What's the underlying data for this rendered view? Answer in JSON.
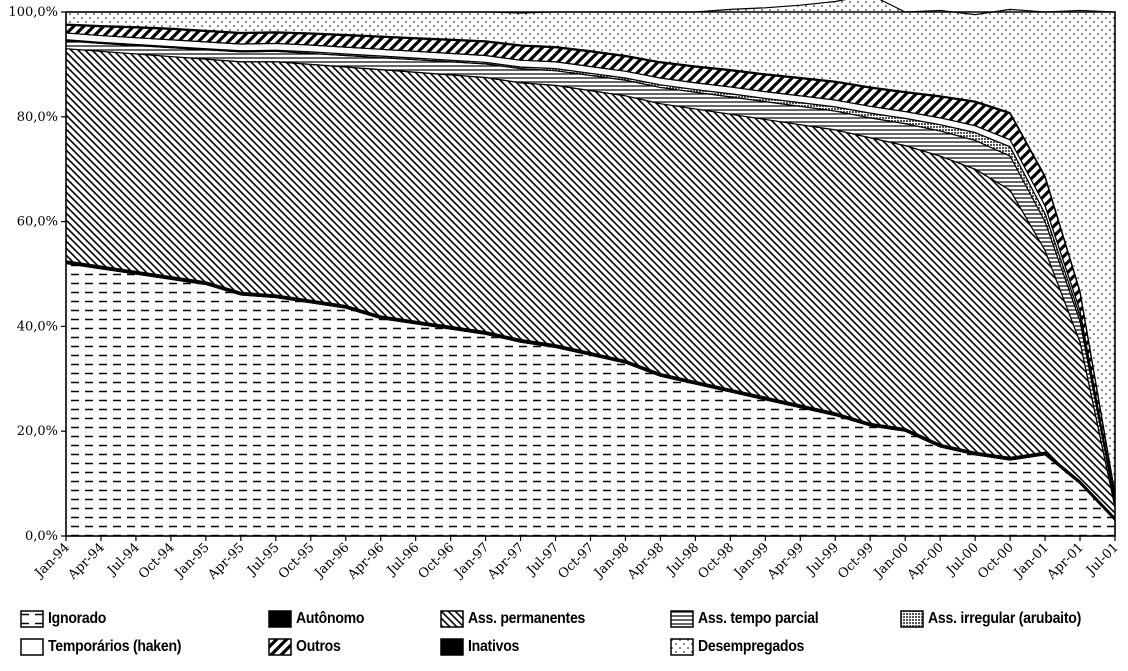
{
  "chart_data": {
    "type": "area",
    "stacked": true,
    "y_tick_labels": [
      "0,0%",
      "20,0%",
      "40,0%",
      "60,0%",
      "80,0%",
      "100,0%"
    ],
    "ylim": [
      0,
      100
    ],
    "x_tick_labels": [
      "Jan-94",
      "Apr-94",
      "Jul-94",
      "Oct-94",
      "Jan-95",
      "Apr-95",
      "Jul-95",
      "Oct-95",
      "Jan-96",
      "Apr-96",
      "Jul-96",
      "Oct-96",
      "Jan-97",
      "Apr-97",
      "Jul-97",
      "Oct-97",
      "Jan-98",
      "Apr-98",
      "Jul-98",
      "Oct-98",
      "Jan-99",
      "Apr-99",
      "Jul-99",
      "Oct-99",
      "Jan-00",
      "Apr-00",
      "Jul-00",
      "Oct-00",
      "Jan-01",
      "Apr-01",
      "Jul-01"
    ],
    "grid": "horizontal dashed",
    "legend_position": "bottom",
    "series": [
      {
        "name": "Ignorado",
        "pattern": "dash",
        "values": [
          52.0,
          51.0,
          50.0,
          49.0,
          48.0,
          46.0,
          45.5,
          44.5,
          43.5,
          41.5,
          40.5,
          39.5,
          38.5,
          37.0,
          36.0,
          34.5,
          33.0,
          30.5,
          29.0,
          27.5,
          26.0,
          24.5,
          23.0,
          21.0,
          20.0,
          17.0,
          15.5,
          14.5,
          15.5,
          10.0,
          3.0
        ]
      },
      {
        "name": "Autônomo",
        "pattern": "dot-black",
        "values": [
          0.5,
          0.5,
          0.5,
          0.5,
          0.5,
          0.5,
          0.5,
          0.5,
          0.5,
          0.5,
          0.5,
          0.5,
          0.5,
          0.5,
          0.5,
          0.5,
          0.5,
          0.5,
          0.5,
          0.5,
          0.5,
          0.5,
          0.5,
          0.5,
          0.5,
          0.5,
          0.5,
          0.5,
          0.5,
          0.5,
          0.5
        ]
      },
      {
        "name": "Ass. permanentes",
        "pattern": "diag",
        "values": [
          40.5,
          41.0,
          41.5,
          42.0,
          42.5,
          44.0,
          44.5,
          45.0,
          45.5,
          47.0,
          47.5,
          48.0,
          48.5,
          49.0,
          49.5,
          50.0,
          50.5,
          51.5,
          52.0,
          52.5,
          53.0,
          53.5,
          54.0,
          54.5,
          54.0,
          55.0,
          54.0,
          51.0,
          38.5,
          26.5,
          2.0
        ]
      },
      {
        "name": "Ass. tempo parcial",
        "pattern": "hline",
        "values": [
          1.5,
          1.5,
          1.6,
          1.7,
          1.8,
          1.9,
          2.0,
          2.1,
          2.2,
          2.3,
          2.4,
          2.5,
          2.6,
          2.7,
          2.8,
          2.9,
          3.0,
          3.1,
          3.2,
          3.3,
          3.4,
          3.5,
          3.6,
          3.8,
          4.2,
          4.8,
          5.5,
          6.5,
          5.5,
          4.0,
          0.8
        ]
      },
      {
        "name": "Ass. irregular (arubaito)",
        "pattern": "grid",
        "values": [
          0.2,
          0.2,
          0.2,
          0.2,
          0.2,
          0.2,
          0.2,
          0.3,
          0.3,
          0.3,
          0.3,
          0.3,
          0.3,
          0.3,
          0.4,
          0.4,
          0.4,
          0.5,
          0.5,
          0.6,
          0.6,
          0.7,
          0.8,
          0.9,
          1.0,
          1.2,
          1.5,
          1.8,
          1.5,
          1.0,
          0.3
        ]
      },
      {
        "name": "Temporários (haken)",
        "pattern": "blank",
        "values": [
          1.3,
          1.3,
          1.3,
          1.3,
          1.3,
          1.3,
          1.3,
          1.3,
          1.3,
          1.3,
          1.3,
          1.3,
          1.3,
          1.3,
          1.3,
          1.3,
          1.3,
          1.3,
          1.3,
          1.3,
          1.3,
          1.3,
          1.3,
          1.3,
          1.3,
          1.3,
          1.3,
          1.3,
          1.5,
          1.0,
          0.3
        ]
      },
      {
        "name": "Outros",
        "pattern": "bold-diag",
        "values": [
          1.5,
          1.7,
          1.9,
          2.0,
          2.0,
          2.0,
          2.0,
          2.1,
          2.2,
          2.3,
          2.4,
          2.5,
          2.6,
          2.7,
          2.7,
          2.8,
          2.8,
          2.9,
          3.0,
          3.1,
          3.2,
          3.3,
          3.4,
          3.5,
          3.6,
          4.0,
          4.5,
          5.0,
          5.5,
          3.5,
          1.0
        ]
      },
      {
        "name": "Inativos",
        "pattern": "solid-black",
        "values": [
          0.2,
          0.2,
          0.2,
          0.2,
          0.2,
          0.2,
          0.2,
          0.2,
          0.2,
          0.2,
          0.2,
          0.2,
          0.2,
          0.2,
          0.2,
          0.2,
          0.2,
          0.2,
          0.2,
          0.2,
          0.2,
          0.2,
          0.2,
          0.2,
          0.2,
          0.2,
          0.2,
          0.2,
          0.2,
          0.2,
          0.2
        ]
      },
      {
        "name": "Desempregados",
        "pattern": "dots",
        "values": [
          2.3,
          2.6,
          2.8,
          3.1,
          3.5,
          3.9,
          3.8,
          4.0,
          4.3,
          4.6,
          4.9,
          5.2,
          5.5,
          6.1,
          6.6,
          7.4,
          8.3,
          9.5,
          10.3,
          11.5,
          12.6,
          13.8,
          15.2,
          17.6,
          15.2,
          16.3,
          16.5,
          19.7,
          31.3,
          53.6,
          91.9
        ]
      }
    ]
  },
  "legend": [
    {
      "label": "Ignorado",
      "pattern": "dash"
    },
    {
      "label": "Autônomo",
      "pattern": "dot-black"
    },
    {
      "label": "Ass. permanentes",
      "pattern": "diag"
    },
    {
      "label": "Ass. tempo parcial",
      "pattern": "hline"
    },
    {
      "label": "Ass. irregular (arubaito)",
      "pattern": "grid"
    },
    {
      "label": "Temporários (haken)",
      "pattern": "blank"
    },
    {
      "label": "Outros",
      "pattern": "bold-diag"
    },
    {
      "label": "Inativos",
      "pattern": "solid-black"
    },
    {
      "label": "Desempregados",
      "pattern": "dots"
    }
  ]
}
